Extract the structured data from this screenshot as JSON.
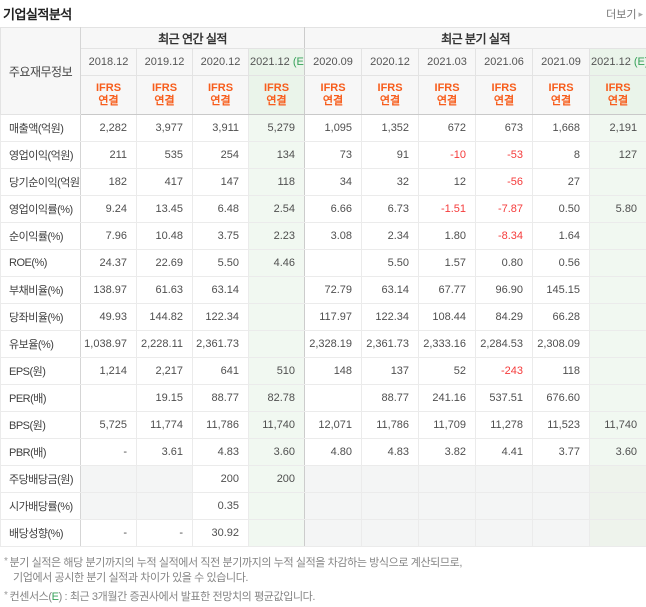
{
  "title": "기업실적분석",
  "more_link": {
    "label": "더보기",
    "arrow": "▸"
  },
  "colors": {
    "ifrs_orange": "#f75d1c",
    "estimate_green": "#35a158",
    "negative_red": "#f53b3b",
    "header_bg": "#f7f7f7",
    "estimate_col_bg": "#f1f8f1",
    "disabled_cell_bg": "#f4f5f5"
  },
  "table": {
    "corner_label": "주요재무정보",
    "estimate_mark": "(E)",
    "ifrs": {
      "line1": "IFRS",
      "line2": "연결"
    },
    "groups": [
      {
        "label": "최근 연간 실적",
        "span": 4
      },
      {
        "label": "최근 분기 실적",
        "span": 6
      }
    ],
    "columns": [
      {
        "date": "2018.12",
        "estimate": false
      },
      {
        "date": "2019.12",
        "estimate": false
      },
      {
        "date": "2020.12",
        "estimate": false
      },
      {
        "date": "2021.12",
        "estimate": true
      },
      {
        "date": "2020.09",
        "estimate": false
      },
      {
        "date": "2020.12",
        "estimate": false
      },
      {
        "date": "2021.03",
        "estimate": false
      },
      {
        "date": "2021.06",
        "estimate": false
      },
      {
        "date": "2021.09",
        "estimate": false
      },
      {
        "date": "2021.12",
        "estimate": true
      }
    ],
    "rows": [
      {
        "label": "매출액(억원)",
        "sep": false,
        "disabled": [],
        "values": [
          "2,282",
          "3,977",
          "3,911",
          "5,279",
          "1,095",
          "1,352",
          "672",
          "673",
          "1,668",
          "2,191"
        ]
      },
      {
        "label": "영업이익(억원)",
        "sep": false,
        "disabled": [],
        "values": [
          "211",
          "535",
          "254",
          "134",
          "73",
          "91",
          "-10",
          "-53",
          "8",
          "127"
        ]
      },
      {
        "label": "당기순이익(억원)",
        "sep": false,
        "disabled": [],
        "values": [
          "182",
          "417",
          "147",
          "118",
          "34",
          "32",
          "12",
          "-56",
          "27",
          ""
        ]
      },
      {
        "label": "영업이익률(%)",
        "sep": true,
        "disabled": [],
        "values": [
          "9.24",
          "13.45",
          "6.48",
          "2.54",
          "6.66",
          "6.73",
          "-1.51",
          "-7.87",
          "0.50",
          "5.80"
        ]
      },
      {
        "label": "순이익률(%)",
        "sep": false,
        "disabled": [],
        "values": [
          "7.96",
          "10.48",
          "3.75",
          "2.23",
          "3.08",
          "2.34",
          "1.80",
          "-8.34",
          "1.64",
          ""
        ]
      },
      {
        "label": "ROE(%)",
        "sep": false,
        "disabled": [],
        "values": [
          "24.37",
          "22.69",
          "5.50",
          "4.46",
          "",
          "5.50",
          "1.57",
          "0.80",
          "0.56",
          ""
        ]
      },
      {
        "label": "부채비율(%)",
        "sep": false,
        "disabled": [],
        "values": [
          "138.97",
          "61.63",
          "63.14",
          "",
          "72.79",
          "63.14",
          "67.77",
          "96.90",
          "145.15",
          ""
        ]
      },
      {
        "label": "당좌비율(%)",
        "sep": false,
        "disabled": [],
        "values": [
          "49.93",
          "144.82",
          "122.34",
          "",
          "117.97",
          "122.34",
          "108.44",
          "84.29",
          "66.28",
          ""
        ]
      },
      {
        "label": "유보율(%)",
        "sep": false,
        "disabled": [],
        "values": [
          "1,038.97",
          "2,228.11",
          "2,361.73",
          "",
          "2,328.19",
          "2,361.73",
          "2,333.16",
          "2,284.53",
          "2,308.09",
          ""
        ]
      },
      {
        "label": "EPS(원)",
        "sep": true,
        "disabled": [],
        "values": [
          "1,214",
          "2,217",
          "641",
          "510",
          "148",
          "137",
          "52",
          "-243",
          "118",
          ""
        ]
      },
      {
        "label": "PER(배)",
        "sep": false,
        "disabled": [],
        "values": [
          "",
          "19.15",
          "88.77",
          "82.78",
          "",
          "88.77",
          "241.16",
          "537.51",
          "676.60",
          ""
        ]
      },
      {
        "label": "BPS(원)",
        "sep": false,
        "disabled": [],
        "values": [
          "5,725",
          "11,774",
          "11,786",
          "11,740",
          "12,071",
          "11,786",
          "11,709",
          "11,278",
          "11,523",
          "11,740"
        ]
      },
      {
        "label": "PBR(배)",
        "sep": false,
        "disabled": [],
        "values": [
          "-",
          "3.61",
          "4.83",
          "3.60",
          "4.80",
          "4.83",
          "3.82",
          "4.41",
          "3.77",
          "3.60"
        ]
      },
      {
        "label": "주당배당금(원)",
        "sep": true,
        "disabled": [
          0,
          1,
          4,
          5,
          6,
          7,
          8,
          9
        ],
        "values": [
          "",
          "",
          "200",
          "200",
          "",
          "",
          "",
          "",
          "",
          ""
        ]
      },
      {
        "label": "시가배당률(%)",
        "sep": false,
        "disabled": [
          0,
          1,
          4,
          5,
          6,
          7,
          8,
          9
        ],
        "values": [
          "",
          "",
          "0.35",
          "",
          "",
          "",
          "",
          "",
          "",
          ""
        ]
      },
      {
        "label": "배당성향(%)",
        "sep": false,
        "disabled": [
          4,
          5,
          6,
          7,
          8,
          9
        ],
        "values": [
          "-",
          "-",
          "30.92",
          "",
          "",
          "",
          "",
          "",
          "",
          ""
        ]
      }
    ]
  },
  "footnotes": [
    {
      "bullet": true,
      "text": "분기 실적은 해당 분기까지의 누적 실적에서 직전 분기까지의 누적 실적을 차감하는 방식으로 계산되므로,"
    },
    {
      "bullet": false,
      "text": "기업에서 공시한 분기 실적과 차이가 있을 수 있습니다."
    },
    {
      "bullet": true,
      "text_before_e": "컨센서스(",
      "e": "E",
      "text_after_e": ") : 최근 3개월간 증권사에서 발표한 전망치의 평균값입니다."
    }
  ]
}
